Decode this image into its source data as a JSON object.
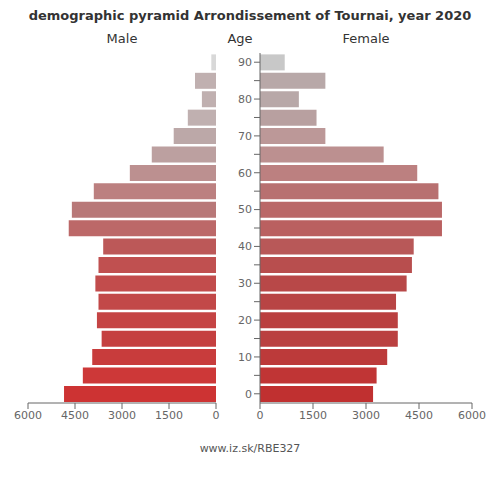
{
  "chart_data": {
    "type": "bar",
    "orientation": "horizontal",
    "title": "demographic pyramid Arrondissement of Tournai, year 2020",
    "ylabel": "Age",
    "categories": [
      "0",
      null,
      "10",
      null,
      "20",
      null,
      "30",
      null,
      "40",
      null,
      "50",
      null,
      "60",
      null,
      "70",
      null,
      "80",
      null,
      "90"
    ],
    "series": [
      {
        "name": "Male",
        "colors": [
          "#cd3333",
          "#cd3838",
          "#c83c3c",
          "#c54040",
          "#c54444",
          "#c24848",
          "#c24c4c",
          "#c05050",
          "#bc5858",
          "#bc6868",
          "#b87878",
          "#bc8080",
          "#bc9090",
          "#bca0a0",
          "#bca8a8",
          "#c0b0b0",
          "#c0b0b0",
          "#c0b0b0",
          "#d8d8d8"
        ],
        "values": [
          4850,
          4250,
          3950,
          3650,
          3800,
          3750,
          3850,
          3750,
          3600,
          4700,
          4600,
          3900,
          2750,
          2050,
          1350,
          900,
          450,
          670,
          150
        ]
      },
      {
        "name": "Female",
        "colors": [
          "#c03030",
          "#c03535",
          "#bc3a3a",
          "#ba4040",
          "#ba4040",
          "#b84444",
          "#b84848",
          "#b84e4e",
          "#b85858",
          "#ba6060",
          "#ba6868",
          "#b87070",
          "#bc8080",
          "#bc9090",
          "#bc9898",
          "#b8a0a0",
          "#b8a8a8",
          "#b8a8a8",
          "#c8c8c8"
        ],
        "values": [
          3200,
          3300,
          3600,
          3900,
          3900,
          3850,
          4150,
          4300,
          4350,
          5150,
          5150,
          5050,
          4450,
          3500,
          1850,
          1600,
          1100,
          1850,
          700
        ]
      }
    ],
    "xlim": [
      0,
      6000
    ],
    "xticks": [
      0,
      1500,
      3000,
      4500,
      6000
    ],
    "grid": false,
    "annotations": [
      "www.iz.sk/RBE327"
    ]
  }
}
